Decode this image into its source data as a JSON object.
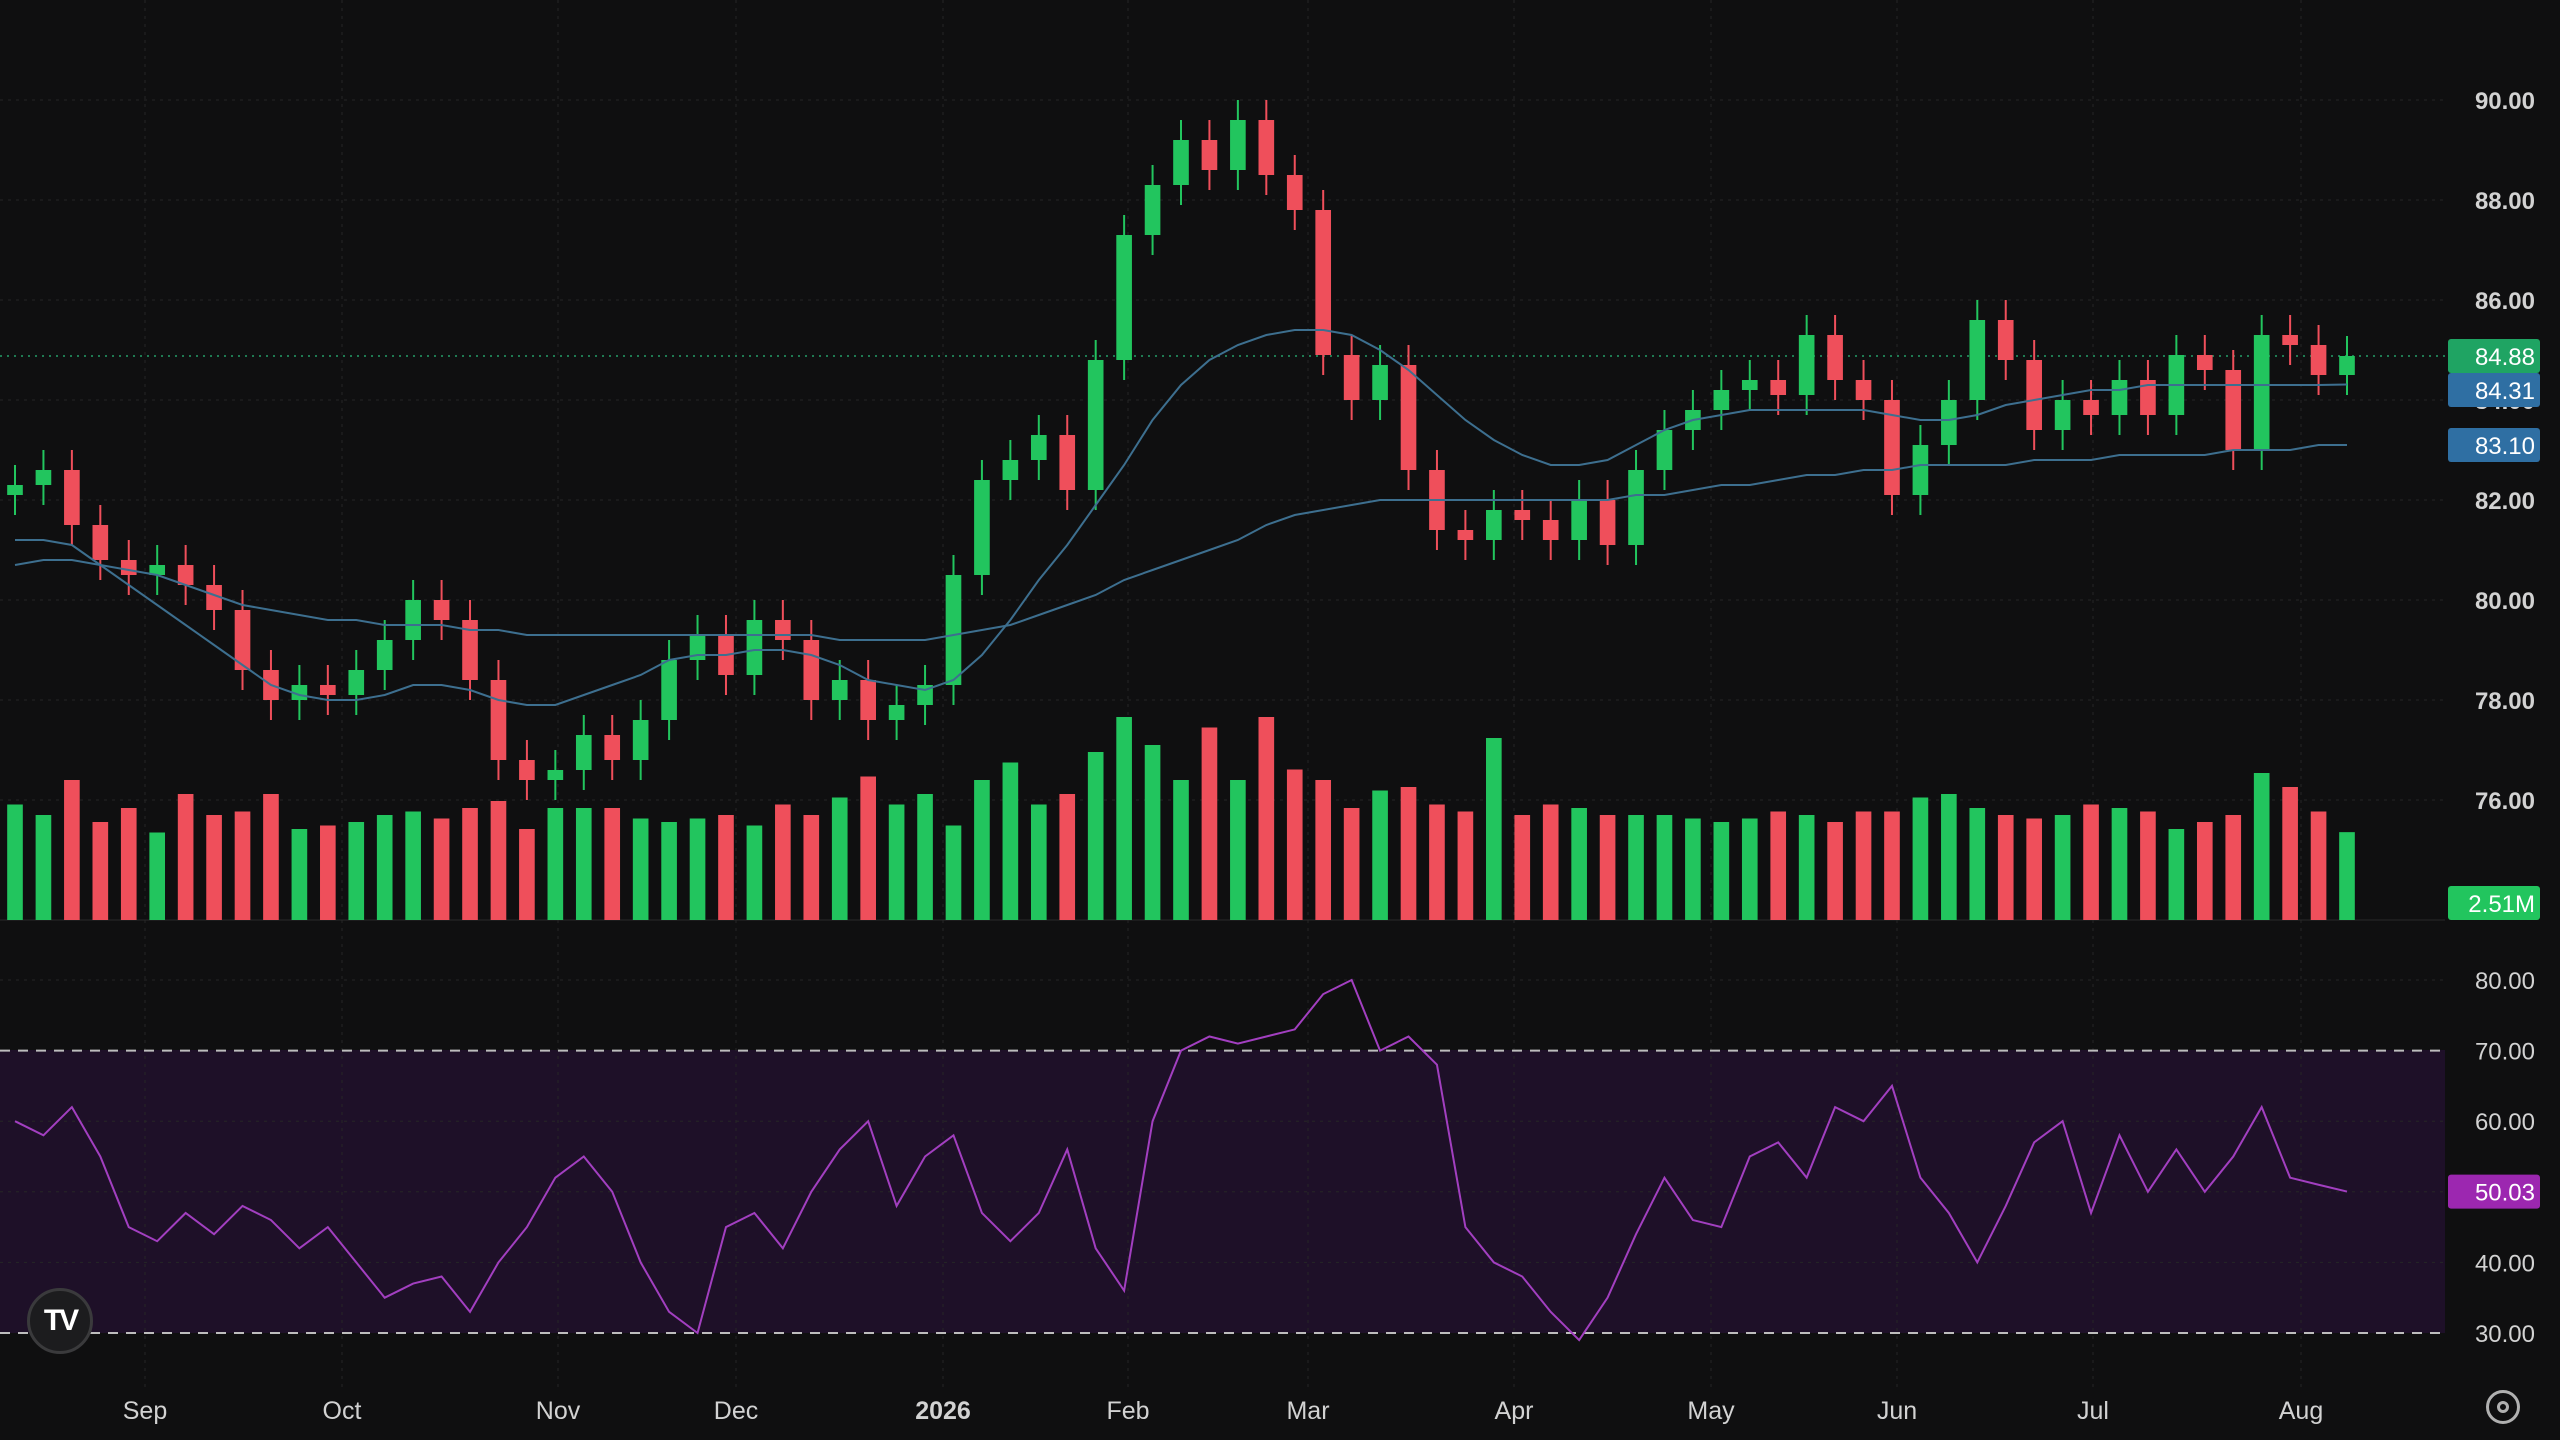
{
  "chart_data": [
    {
      "type": "candlestick",
      "title": "",
      "price_axis_ticks": [
        "90.00",
        "88.00",
        "86.00",
        "84.00",
        "82.00",
        "80.00",
        "78.00",
        "76.00"
      ],
      "ylim": [
        75,
        91
      ],
      "time_axis_labels": [
        "Sep",
        "Oct",
        "Nov",
        "Dec",
        "2026",
        "Feb",
        "Mar",
        "Apr",
        "May",
        "Jun",
        "Jul",
        "Aug"
      ],
      "last_price_label": "84.88",
      "ma_fast_label": "84.31",
      "ma_slow_label": "83.10",
      "volume_label": "2.51M",
      "price_close_series": [
        82.3,
        82.6,
        81.5,
        80.8,
        80.5,
        80.7,
        80.3,
        79.8,
        78.6,
        78.0,
        78.3,
        78.1,
        78.6,
        79.2,
        80.0,
        79.6,
        78.4,
        76.8,
        76.4,
        76.6,
        77.3,
        76.8,
        77.6,
        78.8,
        79.3,
        78.5,
        79.6,
        79.2,
        78.0,
        78.4,
        77.6,
        77.9,
        78.3,
        80.5,
        82.4,
        82.8,
        83.3,
        82.2,
        84.8,
        87.3,
        88.3,
        89.2,
        88.6,
        89.6,
        88.5,
        87.8,
        84.9,
        84.0,
        84.7,
        82.6,
        81.4,
        81.2,
        81.8,
        81.6,
        81.2,
        82.0,
        81.1,
        82.6,
        83.4,
        83.8,
        84.2,
        84.4,
        84.1,
        85.3,
        84.4,
        84.0,
        82.1,
        83.1,
        84.0,
        85.6,
        84.8,
        83.4,
        84.0,
        83.7,
        84.4,
        83.7,
        84.9,
        84.6,
        83.0,
        85.3,
        85.1,
        84.5,
        84.88
      ],
      "ma_fast_series": [
        81.2,
        81.2,
        81.1,
        80.7,
        80.3,
        79.9,
        79.5,
        79.1,
        78.7,
        78.3,
        78.1,
        78.0,
        78.0,
        78.1,
        78.3,
        78.3,
        78.2,
        78.0,
        77.9,
        77.9,
        78.1,
        78.3,
        78.5,
        78.8,
        78.9,
        78.9,
        79.0,
        79.0,
        78.9,
        78.7,
        78.4,
        78.3,
        78.2,
        78.4,
        78.9,
        79.6,
        80.4,
        81.1,
        81.9,
        82.7,
        83.6,
        84.3,
        84.8,
        85.1,
        85.3,
        85.4,
        85.4,
        85.3,
        85.0,
        84.6,
        84.1,
        83.6,
        83.2,
        82.9,
        82.7,
        82.7,
        82.8,
        83.1,
        83.4,
        83.6,
        83.7,
        83.8,
        83.8,
        83.8,
        83.8,
        83.8,
        83.7,
        83.6,
        83.6,
        83.7,
        83.9,
        84.0,
        84.1,
        84.2,
        84.2,
        84.3,
        84.3,
        84.3,
        84.3,
        84.3,
        84.3,
        84.3,
        84.31
      ],
      "ma_slow_series": [
        80.7,
        80.8,
        80.8,
        80.7,
        80.6,
        80.5,
        80.3,
        80.1,
        79.9,
        79.8,
        79.7,
        79.6,
        79.6,
        79.5,
        79.5,
        79.5,
        79.4,
        79.4,
        79.3,
        79.3,
        79.3,
        79.3,
        79.3,
        79.3,
        79.3,
        79.3,
        79.3,
        79.3,
        79.3,
        79.2,
        79.2,
        79.2,
        79.2,
        79.3,
        79.4,
        79.5,
        79.7,
        79.9,
        80.1,
        80.4,
        80.6,
        80.8,
        81.0,
        81.2,
        81.5,
        81.7,
        81.8,
        81.9,
        82.0,
        82.0,
        82.0,
        82.0,
        82.0,
        82.0,
        82.0,
        82.0,
        82.0,
        82.1,
        82.1,
        82.2,
        82.3,
        82.3,
        82.4,
        82.5,
        82.5,
        82.6,
        82.6,
        82.7,
        82.7,
        82.7,
        82.7,
        82.8,
        82.8,
        82.8,
        82.9,
        82.9,
        82.9,
        82.9,
        83.0,
        83.0,
        83.0,
        83.1,
        83.1
      ],
      "volume_series_millions": [
        3.3,
        3.0,
        4.0,
        2.8,
        3.2,
        2.5,
        3.6,
        3.0,
        3.1,
        3.6,
        2.6,
        2.7,
        2.8,
        3.0,
        3.1,
        2.9,
        3.2,
        3.4,
        2.6,
        3.2,
        3.2,
        3.2,
        2.9,
        2.8,
        2.9,
        3.0,
        2.7,
        3.3,
        3.0,
        3.5,
        4.1,
        3.3,
        3.6,
        2.7,
        4.0,
        4.5,
        3.3,
        3.6,
        4.8,
        5.8,
        5.0,
        4.0,
        5.5,
        4.0,
        5.8,
        4.3,
        4.0,
        3.2,
        3.7,
        3.8,
        3.3,
        3.1,
        5.2,
        3.0,
        3.3,
        3.2,
        3.0,
        3.0,
        3.0,
        2.9,
        2.8,
        2.9,
        3.1,
        3.0,
        2.8,
        3.1,
        3.1,
        3.5,
        3.6,
        3.2,
        3.0,
        2.9,
        3.0,
        3.3,
        3.2,
        3.1,
        2.6,
        2.8,
        3.0,
        4.2,
        3.8,
        3.1,
        2.51
      ],
      "volume_unit": "M"
    },
    {
      "type": "line",
      "title": "",
      "rsi_axis_ticks": [
        "80.00",
        "70.00",
        "60.00",
        "50.00",
        "40.00",
        "30.00"
      ],
      "ylim": [
        28,
        85
      ],
      "bands": [
        70,
        30
      ],
      "rsi_label": "50.03",
      "rsi_series": [
        60,
        58,
        62,
        55,
        45,
        43,
        47,
        44,
        48,
        46,
        42,
        45,
        40,
        35,
        37,
        38,
        33,
        40,
        45,
        52,
        55,
        50,
        40,
        33,
        30,
        45,
        47,
        42,
        50,
        56,
        60,
        48,
        55,
        58,
        47,
        43,
        47,
        56,
        42,
        36,
        60,
        70,
        72,
        71,
        72,
        73,
        78,
        80,
        70,
        72,
        68,
        45,
        40,
        38,
        33,
        29,
        35,
        44,
        52,
        46,
        45,
        55,
        57,
        52,
        62,
        60,
        65,
        52,
        47,
        40,
        48,
        57,
        60,
        47,
        58,
        50,
        56,
        50,
        55,
        62,
        52,
        51,
        50.03
      ]
    }
  ],
  "colors": {
    "background": "#0f0f10",
    "grid": "#262626",
    "up": "#22c55e",
    "down": "#ef4f5b",
    "ma_line": "#3d6f8f",
    "last_price_badge": "#1fa463",
    "ma_fast_badge": "#2f6fa3",
    "ma_slow_badge": "#2f6fa3",
    "volume_badge": "#22c55e",
    "rsi_line": "#a23fc0",
    "rsi_band": "#1e1028",
    "rsi_badge": "#9c27b0",
    "axis_text": "#d2d2d2"
  },
  "icons": {
    "logo": "tradingview-logo-icon",
    "settings": "gear-icon"
  },
  "logo_text": "TV"
}
